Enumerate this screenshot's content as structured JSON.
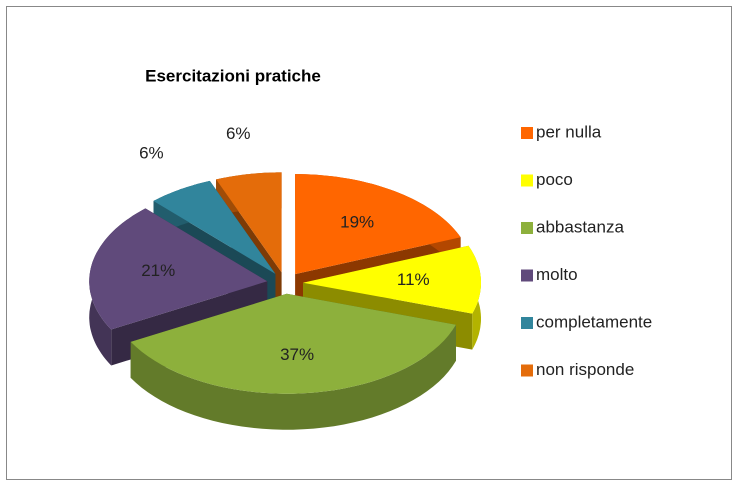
{
  "chart_data": {
    "type": "pie",
    "title": "Esercitazioni pratiche",
    "categories": [
      "per nulla",
      "poco",
      "abbastanza",
      "molto",
      "completamente",
      "non risponde"
    ],
    "values": [
      19,
      11,
      37,
      21,
      6,
      6
    ],
    "value_labels": [
      "19%",
      "11%",
      "37%",
      "21%",
      "6%",
      "6%"
    ],
    "colors": [
      "#ff6600",
      "#ffff00",
      "#8db03c",
      "#604a7b",
      "#31859c",
      "#e46c0a"
    ],
    "legend": "right"
  }
}
